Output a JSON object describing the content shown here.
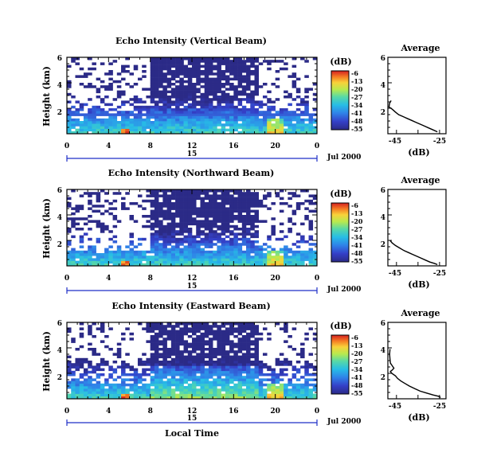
{
  "chart_data": [
    {
      "type": "heatmap",
      "title": "Echo Intensity (Vertical Beam)",
      "ylabel": "Height (km)",
      "x_ticks": [
        "0",
        "4",
        "8",
        "12",
        "16",
        "20",
        "0"
      ],
      "x_range": [
        0,
        24
      ],
      "y_ticks": [
        "2",
        "4",
        "6"
      ],
      "y_range": [
        0,
        6
      ],
      "date_day": "15",
      "date_label": "Jul 2000",
      "colorbar": {
        "unit": "(dB)",
        "ticks": [
          "-6",
          "-13",
          "-20",
          "-27",
          "-34",
          "-41",
          "-48",
          "-55"
        ]
      },
      "profile": {
        "title": "Average",
        "xlabel": "(dB)",
        "x_ticks": [
          "-45",
          "-25"
        ],
        "x_range": [
          -49,
          -22
        ],
        "y_ticks": [
          "2",
          "4",
          "6"
        ],
        "y_range": [
          0,
          6
        ],
        "points": [
          [
            -47.5,
            2.6
          ],
          [
            -48.2,
            2.4
          ],
          [
            -48.5,
            2.1
          ],
          [
            -47.6,
            2.0
          ],
          [
            -46.8,
            1.9
          ],
          [
            -45.5,
            1.7
          ],
          [
            -44.0,
            1.5
          ],
          [
            -42.0,
            1.35
          ],
          [
            -40.0,
            1.2
          ],
          [
            -38.0,
            1.05
          ],
          [
            -36.0,
            0.9
          ],
          [
            -34.0,
            0.75
          ],
          [
            -32.0,
            0.6
          ],
          [
            -30.0,
            0.45
          ],
          [
            -28.0,
            0.3
          ],
          [
            -26.0,
            0.15
          ]
        ]
      },
      "mode": "vertical"
    },
    {
      "type": "heatmap",
      "title": "Echo Intensity (Northward Beam)",
      "ylabel": "Height (km)",
      "x_ticks": [
        "0",
        "4",
        "8",
        "12",
        "16",
        "20",
        "0"
      ],
      "x_range": [
        0,
        24
      ],
      "y_ticks": [
        "2",
        "4",
        "6"
      ],
      "y_range": [
        0,
        6
      ],
      "date_day": "15",
      "date_label": "Jul 2000",
      "colorbar": {
        "unit": "(dB)",
        "ticks": [
          "-6",
          "-13",
          "-20",
          "-27",
          "-34",
          "-41",
          "-48",
          "-55"
        ]
      },
      "profile": {
        "title": "Average",
        "xlabel": "(dB)",
        "x_ticks": [
          "-45",
          "-25"
        ],
        "x_range": [
          -49,
          -22
        ],
        "y_ticks": [
          "2",
          "4",
          "6"
        ],
        "y_range": [
          0,
          6
        ],
        "points": [
          [
            -48.0,
            2.0
          ],
          [
            -47.0,
            1.8
          ],
          [
            -45.5,
            1.6
          ],
          [
            -43.5,
            1.4
          ],
          [
            -41.5,
            1.2
          ],
          [
            -39.5,
            1.05
          ],
          [
            -37.5,
            0.9
          ],
          [
            -35.5,
            0.75
          ],
          [
            -33.5,
            0.6
          ],
          [
            -31.5,
            0.45
          ],
          [
            -29.5,
            0.3
          ],
          [
            -27.5,
            0.2
          ],
          [
            -26.0,
            0.1
          ]
        ]
      },
      "mode": "north"
    },
    {
      "type": "heatmap",
      "title": "Echo Intensity (Eastward Beam)",
      "ylabel": "Height (km)",
      "xlabel": "Local Time",
      "x_ticks": [
        "0",
        "4",
        "8",
        "12",
        "16",
        "20",
        "0"
      ],
      "x_range": [
        0,
        24
      ],
      "y_ticks": [
        "2",
        "4",
        "6"
      ],
      "y_range": [
        0,
        6
      ],
      "date_day": "15",
      "date_label": "Jul 2000",
      "colorbar": {
        "unit": "(dB)",
        "ticks": [
          "-6",
          "-13",
          "-20",
          "-27",
          "-34",
          "-41",
          "-48",
          "-55"
        ]
      },
      "profile": {
        "title": "Average",
        "xlabel": "(dB)",
        "x_ticks": [
          "-45",
          "-25"
        ],
        "x_range": [
          -49,
          -22
        ],
        "y_ticks": [
          "2",
          "4",
          "6"
        ],
        "y_range": [
          0,
          6
        ],
        "points": [
          [
            -48.0,
            3.9
          ],
          [
            -48.2,
            3.5
          ],
          [
            -48.0,
            3.1
          ],
          [
            -47.8,
            2.8
          ],
          [
            -47.0,
            2.6
          ],
          [
            -46.2,
            2.4
          ],
          [
            -47.0,
            2.25
          ],
          [
            -47.8,
            2.15
          ],
          [
            -47.2,
            2.0
          ],
          [
            -45.5,
            1.8
          ],
          [
            -44.5,
            1.6
          ],
          [
            -43.0,
            1.4
          ],
          [
            -41.0,
            1.2
          ],
          [
            -39.0,
            1.0
          ],
          [
            -36.5,
            0.8
          ],
          [
            -34.0,
            0.6
          ],
          [
            -31.0,
            0.45
          ],
          [
            -28.0,
            0.3
          ],
          [
            -25.5,
            0.2
          ],
          [
            -24.5,
            0.1
          ]
        ]
      },
      "mode": "east"
    }
  ]
}
